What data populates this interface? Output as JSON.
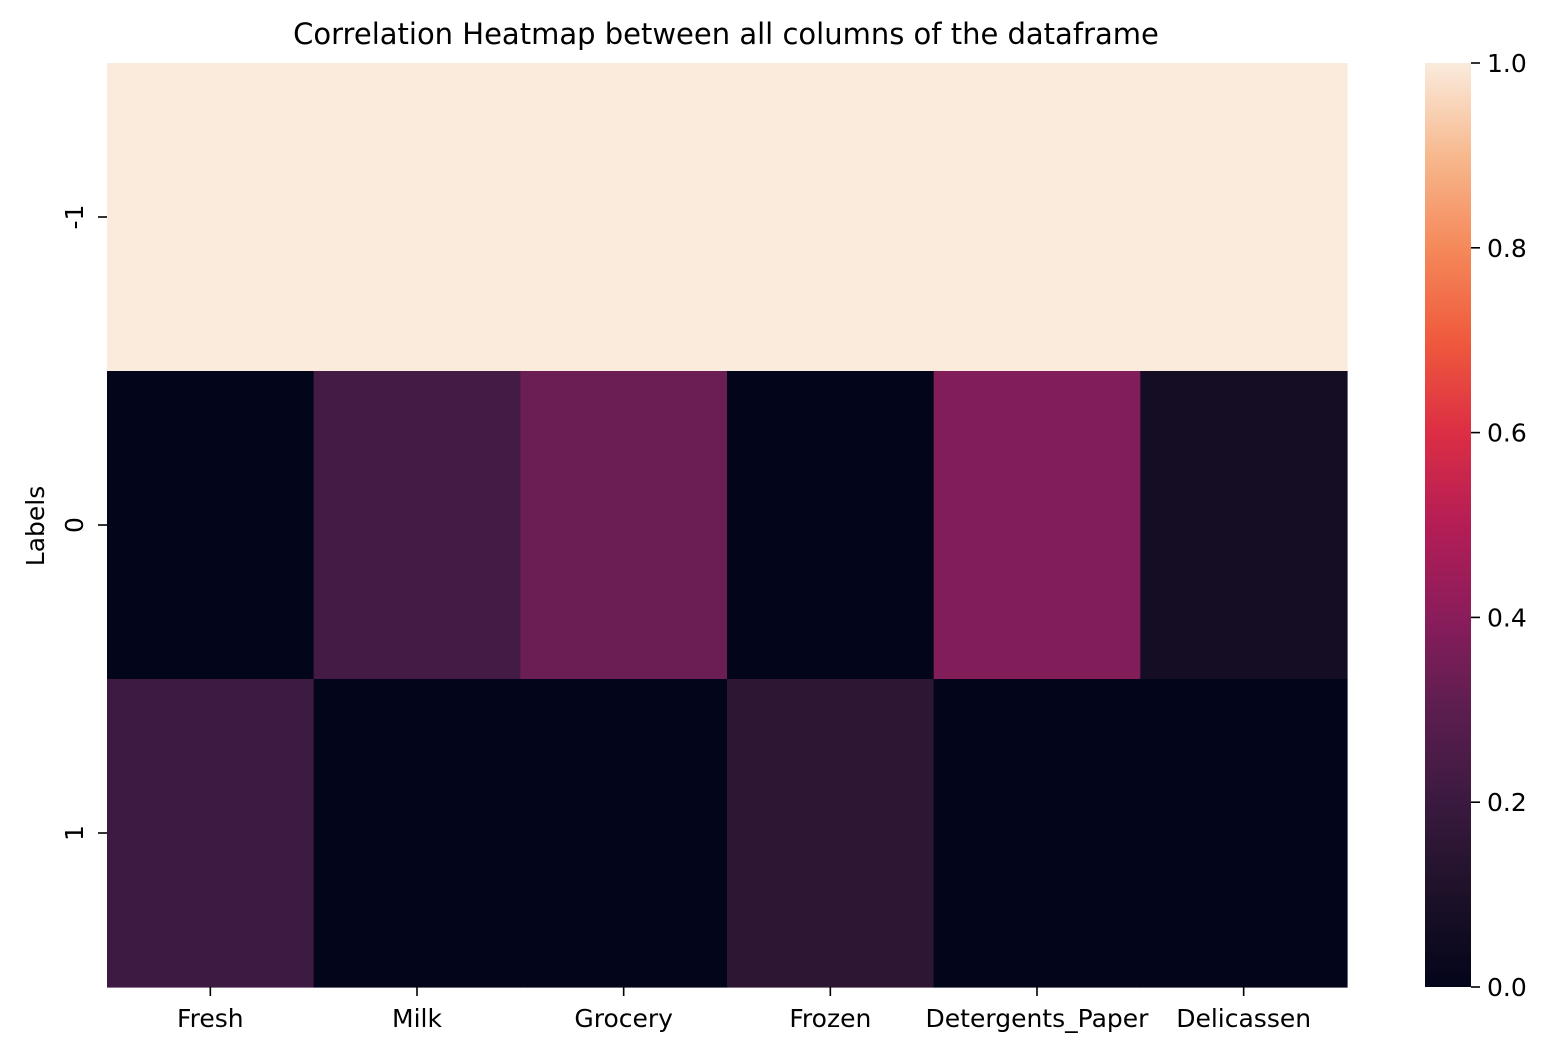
{
  "chart_data": {
    "type": "heatmap",
    "title": "Correlation Heatmap between all columns of the dataframe",
    "xlabel": "",
    "ylabel": "Labels",
    "x_categories": [
      "Fresh",
      "Milk",
      "Grocery",
      "Frozen",
      "Detergents_Paper",
      "Delicassen"
    ],
    "y_categories": [
      "-1",
      "0",
      "1"
    ],
    "values": [
      [
        1.0,
        1.0,
        1.0,
        1.0,
        1.0,
        1.0
      ],
      [
        0.0,
        0.23,
        0.33,
        0.0,
        0.38,
        0.07
      ],
      [
        0.21,
        0.0,
        0.0,
        0.15,
        0.0,
        0.0
      ]
    ],
    "colorbar": {
      "min": 0.0,
      "max": 1.0,
      "ticks": [
        "0.0",
        "0.2",
        "0.4",
        "0.6",
        "0.8",
        "1.0"
      ],
      "colormap": "rocket"
    },
    "grid": false
  }
}
